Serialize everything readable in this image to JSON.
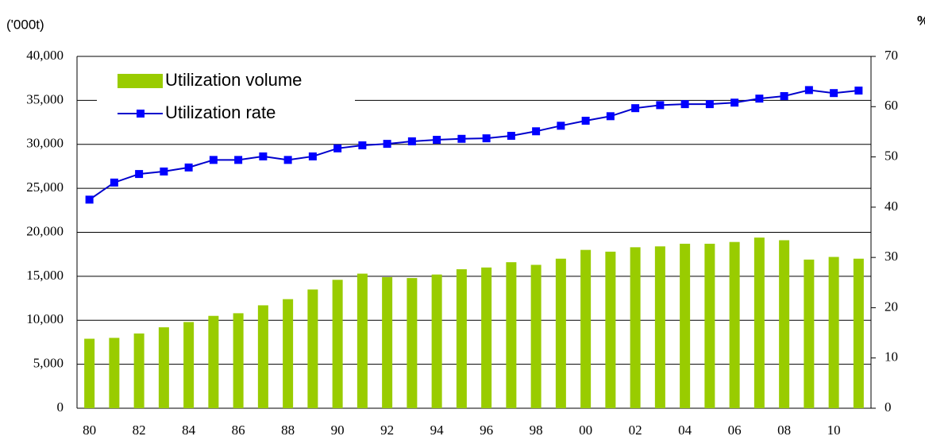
{
  "chart_data": {
    "type": "bar-line",
    "y_label": "('000t)",
    "y2_label": "%",
    "categories": [
      "80",
      null,
      "82",
      null,
      "84",
      null,
      "86",
      null,
      "88",
      null,
      "90",
      null,
      "92",
      null,
      "94",
      null,
      "96",
      null,
      "98",
      null,
      "00",
      null,
      "02",
      null,
      "04",
      null,
      "06",
      null,
      "08",
      null,
      "10",
      null
    ],
    "series": [
      {
        "name": "Utilization volume",
        "type": "bar",
        "color": "#99cc00",
        "values": [
          7900,
          8000,
          8500,
          9200,
          9800,
          10500,
          10800,
          11700,
          12400,
          13500,
          14600,
          15300,
          14900,
          14800,
          15200,
          15800,
          16000,
          16600,
          16300,
          17000,
          18000,
          17800,
          18300,
          18400,
          18700,
          18700,
          18900,
          19400,
          19100,
          16900,
          17200,
          17000
        ]
      },
      {
        "name": "Utilization rate",
        "type": "line",
        "axis": "y2",
        "color": "#0000cc",
        "marker_color": "#0000ff",
        "values": [
          41.5,
          44.9,
          46.6,
          47.1,
          47.9,
          49.4,
          49.4,
          50.1,
          49.4,
          50.1,
          51.7,
          52.3,
          52.6,
          53.1,
          53.4,
          53.6,
          53.7,
          54.2,
          55.1,
          56.2,
          57.2,
          58.1,
          59.7,
          60.3,
          60.5,
          60.5,
          60.8,
          61.6,
          62.1,
          63.3,
          62.7,
          63.2
        ]
      }
    ],
    "ylim": [
      0,
      40000
    ],
    "yticks": [
      0,
      {
        "value": 5000,
        "label": "5,000"
      },
      {
        "value": 10000,
        "label": "10,000"
      },
      {
        "value": 15000,
        "label": "15,000"
      },
      {
        "value": 20000,
        "label": "20,000"
      },
      {
        "value": 25000,
        "label": "25,000"
      },
      {
        "value": 30000,
        "label": "30,000"
      },
      {
        "value": 35000,
        "label": "35,000"
      },
      {
        "value": 40000,
        "label": "40,000"
      }
    ],
    "y2lim": [
      0,
      70
    ],
    "y2ticks": [
      0,
      10,
      20,
      30,
      40,
      50,
      60,
      70
    ],
    "grid": true,
    "legend": "upper left"
  }
}
